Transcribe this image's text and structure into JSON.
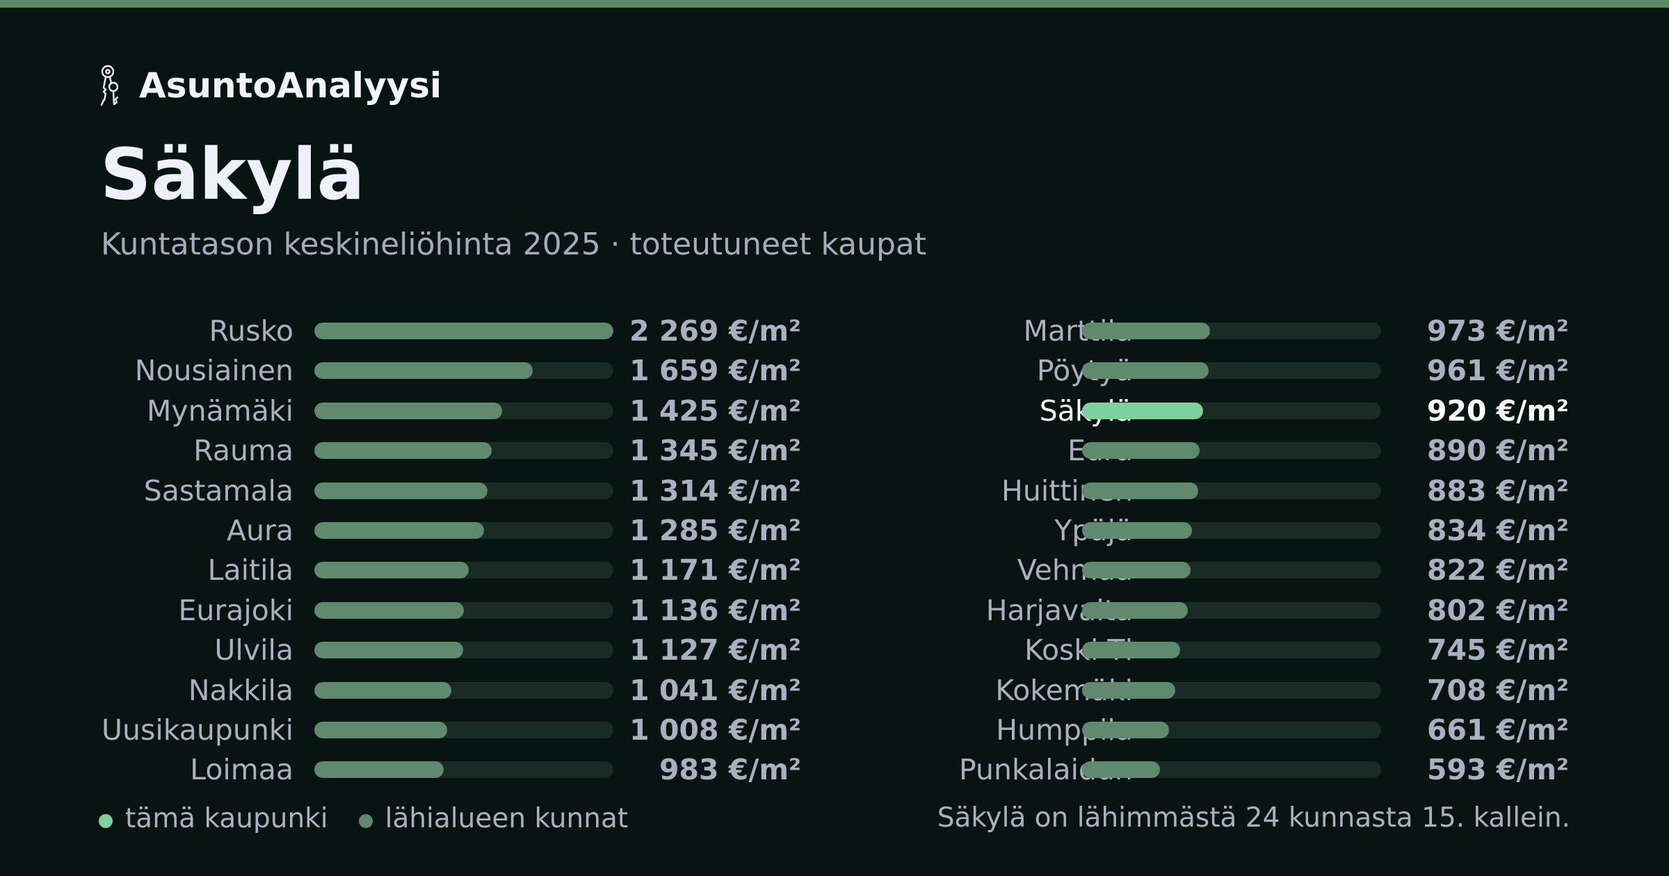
{
  "brand": {
    "name": "AsuntoAnalyysi",
    "icon": "keys-icon"
  },
  "header": {
    "title": "Säkylä",
    "subtitle": "Kuntatason keskineliöhinta 2025 · toteutuneet kaupat"
  },
  "colors": {
    "accent_top": "#5c8a67",
    "bar_default": "#5f8a6e",
    "bar_highlight": "#7fd19b",
    "track": "#1a2a25",
    "background": "#081411"
  },
  "chart_data": {
    "type": "bar",
    "orientation": "horizontal",
    "unit": "€/m²",
    "xlim": [
      0,
      2269
    ],
    "highlight": "Säkylä",
    "categories": [
      "Rusko",
      "Nousiainen",
      "Mynämäki",
      "Rauma",
      "Sastamala",
      "Aura",
      "Laitila",
      "Eurajoki",
      "Ulvila",
      "Nakkila",
      "Uusikaupunki",
      "Loimaa",
      "Marttila",
      "Pöytyä",
      "Säkylä",
      "Eura",
      "Huittinen",
      "Ypäjä",
      "Vehmaa",
      "Harjavalta",
      "Koski Tl",
      "Kokemäki",
      "Humppila",
      "Punkalaidun"
    ],
    "values": [
      2269,
      1659,
      1425,
      1345,
      1314,
      1285,
      1171,
      1136,
      1127,
      1041,
      1008,
      983,
      973,
      961,
      920,
      890,
      883,
      834,
      822,
      802,
      745,
      708,
      661,
      593
    ],
    "value_labels": [
      "2 269 €/m²",
      "1 659 €/m²",
      "1 425 €/m²",
      "1 345 €/m²",
      "1 314 €/m²",
      "1 285 €/m²",
      "1 171 €/m²",
      "1 136 €/m²",
      "1 127 €/m²",
      "1 041 €/m²",
      "1 008 €/m²",
      "983 €/m²",
      "973 €/m²",
      "961 €/m²",
      "920 €/m²",
      "890 €/m²",
      "883 €/m²",
      "834 €/m²",
      "822 €/m²",
      "802 €/m²",
      "745 €/m²",
      "708 €/m²",
      "661 €/m²",
      "593 €/m²"
    ]
  },
  "legend": {
    "this_city": "tämä kaupunki",
    "nearby": "lähialueen kunnat"
  },
  "footnote": "Säkylä on lähimmästä 24 kunnasta 15. kallein."
}
